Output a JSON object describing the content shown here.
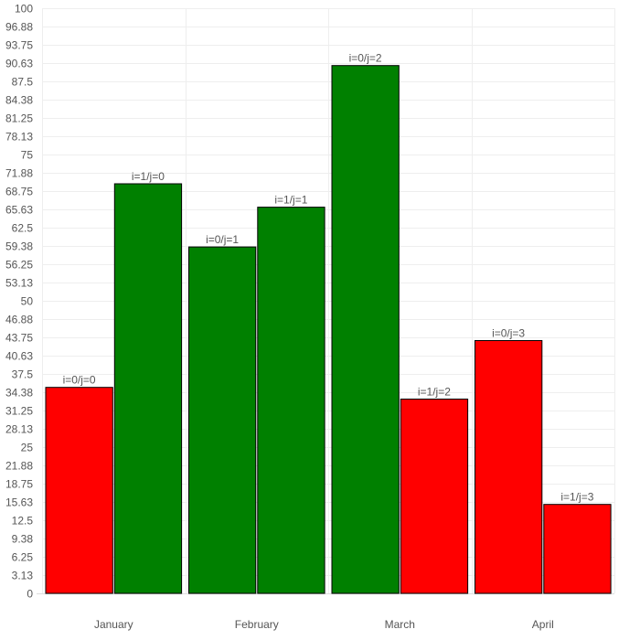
{
  "chart_data": {
    "type": "bar",
    "title": "",
    "xlabel": "",
    "ylabel": "",
    "categories": [
      "January",
      "February",
      "March",
      "April"
    ],
    "ylim": [
      0,
      100
    ],
    "yticks": [
      "0",
      "3.13",
      "6.25",
      "9.38",
      "12.5",
      "15.63",
      "18.75",
      "21.88",
      "25",
      "28.13",
      "31.25",
      "34.38",
      "37.5",
      "40.63",
      "43.75",
      "46.88",
      "50",
      "53.13",
      "56.25",
      "59.38",
      "62.5",
      "65.63",
      "68.75",
      "71.88",
      "75",
      "78.13",
      "81.25",
      "84.38",
      "87.5",
      "90.63",
      "93.75",
      "96.88",
      "100"
    ],
    "grid": true,
    "legend": "none",
    "series": [
      {
        "values": [
          35.2,
          59.2,
          90.2,
          43.2
        ],
        "colors": [
          "#ff0000",
          "#008000",
          "#008000",
          "#ff0000"
        ],
        "labels": [
          "i=0/j=0",
          "i=0/j=1",
          "i=0/j=2",
          "i=0/j=3"
        ]
      },
      {
        "values": [
          70.0,
          66.0,
          33.2,
          15.2
        ],
        "colors": [
          "#008000",
          "#008000",
          "#ff0000",
          "#ff0000"
        ],
        "labels": [
          "i=1/j=0",
          "i=1/j=1",
          "i=1/j=2",
          "i=1/j=3"
        ]
      }
    ]
  }
}
